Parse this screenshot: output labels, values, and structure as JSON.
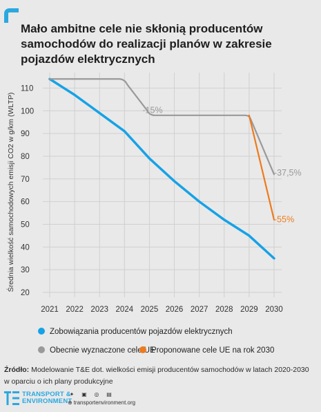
{
  "title": "Mało ambitne cele nie skłonią producentów\nsamochodów do realizacji planów w zakresie\npojazdów elektrycznych",
  "colors": {
    "accent": "#2aa8df",
    "commitments": "#16a2e6",
    "current": "#999999",
    "proposed": "#ee7a1c"
  },
  "chart_data": {
    "type": "line",
    "title": "Mało ambitne cele nie skłonią producentów samochodów do realizacji planów w zakresie pojazdów elektrycznych",
    "ylabel": "Średnia wielkość samochodowych emisji CO2 w g/km (WLTP)",
    "xlabel": "",
    "ylim": [
      20,
      115
    ],
    "x_ticks": [
      2021,
      2022,
      2023,
      2024,
      2025,
      2026,
      2027,
      2028,
      2029,
      2030
    ],
    "y_ticks": [
      20,
      30,
      40,
      50,
      60,
      70,
      80,
      90,
      100,
      110
    ],
    "grid": true,
    "series": [
      {
        "name": "Zobowiązania producentów pojazdów elektrycznych",
        "color": "#16a2e6",
        "x": [
          2021,
          2022,
          2023,
          2024,
          2025,
          2026,
          2027,
          2028,
          2029,
          2030
        ],
        "y": [
          114,
          107,
          99,
          91,
          79,
          69,
          60,
          52,
          45,
          35
        ]
      },
      {
        "name": "Obecnie wyznaczone cele UE",
        "color": "#999999",
        "x": [
          2021,
          2024,
          2025,
          2029,
          2030
        ],
        "y": [
          114,
          114,
          98,
          98,
          72
        ]
      },
      {
        "name": "Proponowane cele UE na rok 2030",
        "color": "#ee7a1c",
        "x": [
          2029,
          2030
        ],
        "y": [
          98,
          52
        ]
      }
    ],
    "annotations": [
      {
        "text": "-15%",
        "x": 2025,
        "y": 100.5,
        "color": "#999999"
      },
      {
        "text": "-37,5%",
        "x": 2030,
        "y": 73,
        "color": "#999999"
      },
      {
        "text": "-55%",
        "x": 2030,
        "y": 52.5,
        "color": "#ee7a1c"
      }
    ],
    "legend_position": "bottom"
  },
  "source": {
    "label": "Źródło:",
    "text": " Modelowanie T&E dot. wielkości emisji producentów samochodów w latach 2020-2030 w oparciu o ich plany produkcyjne"
  },
  "footer": {
    "brand_line1": "TRANSPORT &",
    "brand_line2": "ENVIRONMENT",
    "site": "transportenvironment.org",
    "social_icons": [
      "twitter-icon",
      "facebook-icon",
      "instagram-icon",
      "linkedin-icon"
    ]
  }
}
